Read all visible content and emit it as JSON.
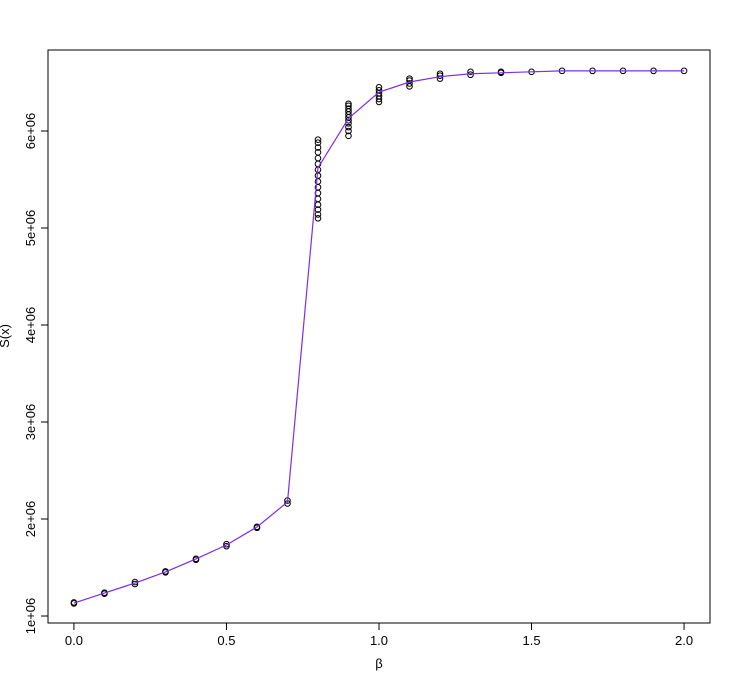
{
  "chart_data": {
    "type": "scatter",
    "x_label": "β",
    "y_label": "S(x)",
    "xlim": [
      -0.085,
      2.085
    ],
    "ylim": [
      928000,
      6835000
    ],
    "xticks": [
      {
        "value": 0,
        "label": "0.0"
      },
      0.5,
      {
        "value": 1,
        "label": "1.0"
      },
      1.5,
      {
        "value": 2,
        "label": "2.0"
      }
    ],
    "yticks": [
      {
        "value": 1000000,
        "label": "1e+06"
      },
      {
        "value": 2000000,
        "label": "2e+06"
      },
      {
        "value": 3000000,
        "label": "3e+06"
      },
      {
        "value": 4000000,
        "label": "4e+06"
      },
      {
        "value": 5000000,
        "label": "5e+06"
      },
      {
        "value": 6000000,
        "label": "6e+06"
      }
    ],
    "points": {
      "color": "#000000",
      "x": [
        0,
        0,
        0.1,
        0.1,
        0.2,
        0.2,
        0.3,
        0.3,
        0.4,
        0.4,
        0.5,
        0.5,
        0.6,
        0.6,
        0.7,
        0.7,
        0.8,
        0.8,
        0.8,
        0.8,
        0.8,
        0.8,
        0.8,
        0.8,
        0.8,
        0.8,
        0.8,
        0.8,
        0.8,
        0.8,
        0.8,
        0.8,
        0.9,
        0.9,
        0.9,
        0.9,
        0.9,
        0.9,
        0.9,
        0.9,
        0.9,
        0.9,
        0.9,
        1,
        1,
        1,
        1,
        1,
        1,
        1.1,
        1.1,
        1.1,
        1.1,
        1.2,
        1.2,
        1.2,
        1.3,
        1.3,
        1.4,
        1.4,
        1.5,
        1.6,
        1.7,
        1.8,
        1.9,
        2
      ],
      "y": [
        1130000,
        1140000,
        1230000,
        1240000,
        1330000,
        1350000,
        1450000,
        1460000,
        1580000,
        1590000,
        1720000,
        1740000,
        1910000,
        1920000,
        2160000,
        2190000,
        5100000,
        5140000,
        5190000,
        5240000,
        5300000,
        5360000,
        5420000,
        5480000,
        5540000,
        5600000,
        5660000,
        5720000,
        5780000,
        5830000,
        5880000,
        5910000,
        5950000,
        6000000,
        6040000,
        6080000,
        6110000,
        6140000,
        6170000,
        6200000,
        6230000,
        6260000,
        6280000,
        6300000,
        6330000,
        6360000,
        6390000,
        6420000,
        6450000,
        6460000,
        6490000,
        6520000,
        6540000,
        6540000,
        6570000,
        6590000,
        6580000,
        6610000,
        6600000,
        6610000,
        6610000,
        6620000,
        6620000,
        6620000,
        6620000,
        6620000
      ]
    },
    "line": {
      "color": "#7b2cf0",
      "x": [
        0,
        0.1,
        0.2,
        0.3,
        0.4,
        0.5,
        0.6,
        0.7,
        0.8,
        0.9,
        1,
        1.1,
        1.2,
        1.3,
        1.4,
        1.5,
        1.6,
        1.7,
        1.8,
        1.9,
        2
      ],
      "y": [
        1134000,
        1237000,
        1340000,
        1454000,
        1588000,
        1732000,
        1918000,
        2175000,
        5620000,
        6130000,
        6400000,
        6505000,
        6560000,
        6590000,
        6600000,
        6610000,
        6620000,
        6620000,
        6620000,
        6620000,
        6620000
      ]
    }
  }
}
